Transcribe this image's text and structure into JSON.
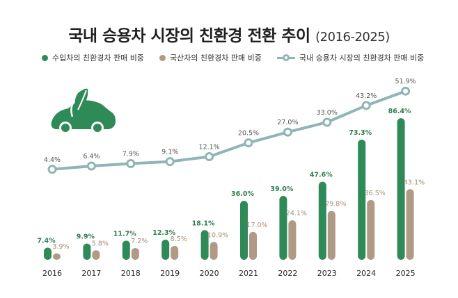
{
  "title": {
    "main": "국내 승용차 시장의 친환경 전환 추이",
    "years": "(2016-2025)"
  },
  "legend": {
    "imported": "수입차의 친환경차 판매 비중",
    "domestic": "국산차의 친환경차 판매 비중",
    "total": "국내 승용차 시장의 친환경차 판매 비중"
  },
  "colors": {
    "imported": "#2e8b57",
    "domestic": "#b09a85",
    "total_line": "#8fb5b5",
    "imported_label": "#2e7d4f",
    "domestic_label": "#a88f78",
    "total_label": "#555555",
    "icon": "#2e8b57"
  },
  "chart_data": {
    "type": "bar",
    "categories": [
      "2016",
      "2017",
      "2018",
      "2019",
      "2020",
      "2021",
      "2022",
      "2023",
      "2024",
      "2025"
    ],
    "series": [
      {
        "name": "수입차의 친환경차 판매 비중",
        "type": "bar",
        "values": [
          7.4,
          9.9,
          11.7,
          12.3,
          18.1,
          36.0,
          39.0,
          47.6,
          73.3,
          86.4
        ]
      },
      {
        "name": "국산차의 친환경차 판매 비중",
        "type": "bar",
        "values": [
          3.9,
          5.8,
          7.2,
          8.5,
          10.9,
          17.0,
          24.1,
          29.8,
          36.5,
          43.1
        ]
      },
      {
        "name": "국내 승용차 시장의 친환경차 판매 비중",
        "type": "line",
        "values": [
          4.4,
          6.4,
          7.9,
          9.1,
          12.1,
          20.5,
          27.0,
          33.0,
          43.2,
          51.9
        ]
      }
    ],
    "unit": "%",
    "icon": "eco-car-icon"
  }
}
